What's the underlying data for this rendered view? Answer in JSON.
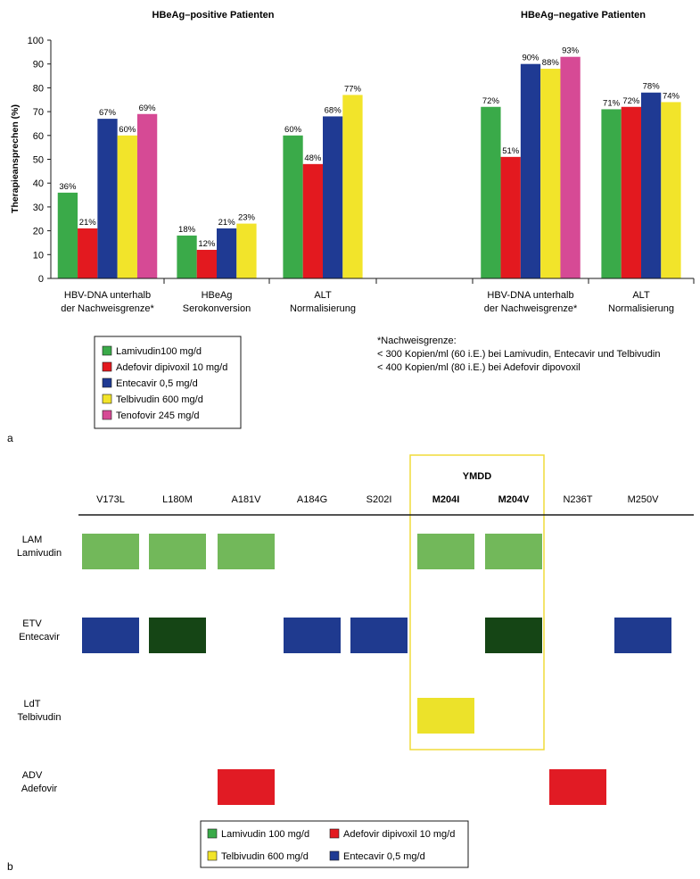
{
  "colors": {
    "green": "#3aaa49",
    "red": "#e3191f",
    "blue": "#1f3a93",
    "yellow": "#f2e42a",
    "pink": "#d64a95",
    "light_green": "#72b85a",
    "dark_green": "#154515",
    "mut_red": "#e11b24",
    "mut_yellow": "#ece22a",
    "mut_blue": "#1f3a8f",
    "frame": "#f0dc3a"
  },
  "chart_data": [
    {
      "type": "bar",
      "panel_label": "a",
      "ylabel": "Therapieansprechen (%)",
      "ylim": [
        0,
        100
      ],
      "yticks": [
        0,
        10,
        20,
        30,
        40,
        50,
        60,
        70,
        80,
        90,
        100
      ],
      "group_titles": [
        "HBeAg–positive Patienten",
        "HBeAg–negative Patienten"
      ],
      "categories": [
        [
          "HBV-DNA unterhalb",
          "der Nachweisgrenze*"
        ],
        [
          "HBeAg",
          "Serokonversion"
        ],
        [
          "ALT",
          "Normalisierung"
        ],
        [
          "",
          ""
        ],
        [
          "HBV-DNA unterhalb",
          "der Nachweisgrenze*"
        ],
        [
          "ALT",
          "Normalisierung"
        ]
      ],
      "series": [
        {
          "name": "Lamivudin100 mg/d",
          "color_key": "green",
          "values": [
            36,
            18,
            60,
            null,
            72,
            71
          ],
          "labels": [
            "36%",
            "18%",
            "60%",
            "",
            "72%",
            "71%"
          ]
        },
        {
          "name": "Adefovir dipivoxil 10 mg/d",
          "color_key": "red",
          "values": [
            21,
            12,
            48,
            null,
            51,
            72
          ],
          "labels": [
            "21%",
            "12%",
            "48%",
            "",
            "51%",
            "72%"
          ]
        },
        {
          "name": "Entecavir 0,5 mg/d",
          "color_key": "blue",
          "values": [
            67,
            21,
            68,
            null,
            90,
            78
          ],
          "labels": [
            "67%",
            "21%",
            "68%",
            "",
            "90%",
            "78%"
          ]
        },
        {
          "name": "Telbivudin 600 mg/d",
          "color_key": "yellow",
          "values": [
            60,
            23,
            77,
            null,
            88,
            74
          ],
          "labels": [
            "60%",
            "23%",
            "77%",
            "",
            "88%",
            "74%"
          ]
        },
        {
          "name": "Tenofovir 245 mg/d",
          "color_key": "pink",
          "values": [
            69,
            null,
            null,
            null,
            93,
            null
          ],
          "labels": [
            "69%",
            "",
            "",
            "",
            "93%",
            ""
          ]
        }
      ],
      "footnote": [
        "*Nachweisgrenze:",
        "< 300 Kopien/ml (60 i.E.) bei Lamivudin, Entecavir und Telbivudin",
        "< 400 Kopien/ml (80 i.E.) bei Adefovir dipovoxil"
      ]
    },
    {
      "type": "heatmap",
      "panel_label": "b",
      "group_header": "YMDD",
      "mutations": [
        "V173L",
        "L180M",
        "A181V",
        "A184G",
        "S202I",
        "M204I",
        "M204V",
        "N236T",
        "M250V"
      ],
      "bold_mutations": [
        "M204I",
        "M204V"
      ],
      "rows": [
        {
          "line1": "LAM",
          "line2": "Lamivudin",
          "cells": [
            "light_green",
            "light_green",
            "light_green",
            null,
            null,
            "light_green",
            "light_green",
            null,
            null
          ]
        },
        {
          "line1": "ETV",
          "line2": "Entecavir",
          "cells": [
            "mut_blue",
            "dark_green",
            null,
            "mut_blue",
            "mut_blue",
            null,
            "dark_green",
            null,
            "mut_blue"
          ]
        },
        {
          "line1": "LdT",
          "line2": "Telbivudin",
          "cells": [
            null,
            null,
            null,
            null,
            null,
            "mut_yellow",
            null,
            null,
            null
          ]
        },
        {
          "line1": "ADV",
          "line2": "Adefovir",
          "cells": [
            null,
            null,
            "mut_red",
            null,
            null,
            null,
            null,
            "mut_red",
            null
          ]
        }
      ],
      "legend": [
        {
          "label": "Lamivudin 100 mg/d",
          "color_key": "green"
        },
        {
          "label": "Adefovir dipivoxil 10 mg/d",
          "color_key": "red"
        },
        {
          "label": "Telbivudin 600 mg/d",
          "color_key": "yellow"
        },
        {
          "label": "Entecavir 0,5 mg/d",
          "color_key": "blue"
        }
      ]
    }
  ]
}
